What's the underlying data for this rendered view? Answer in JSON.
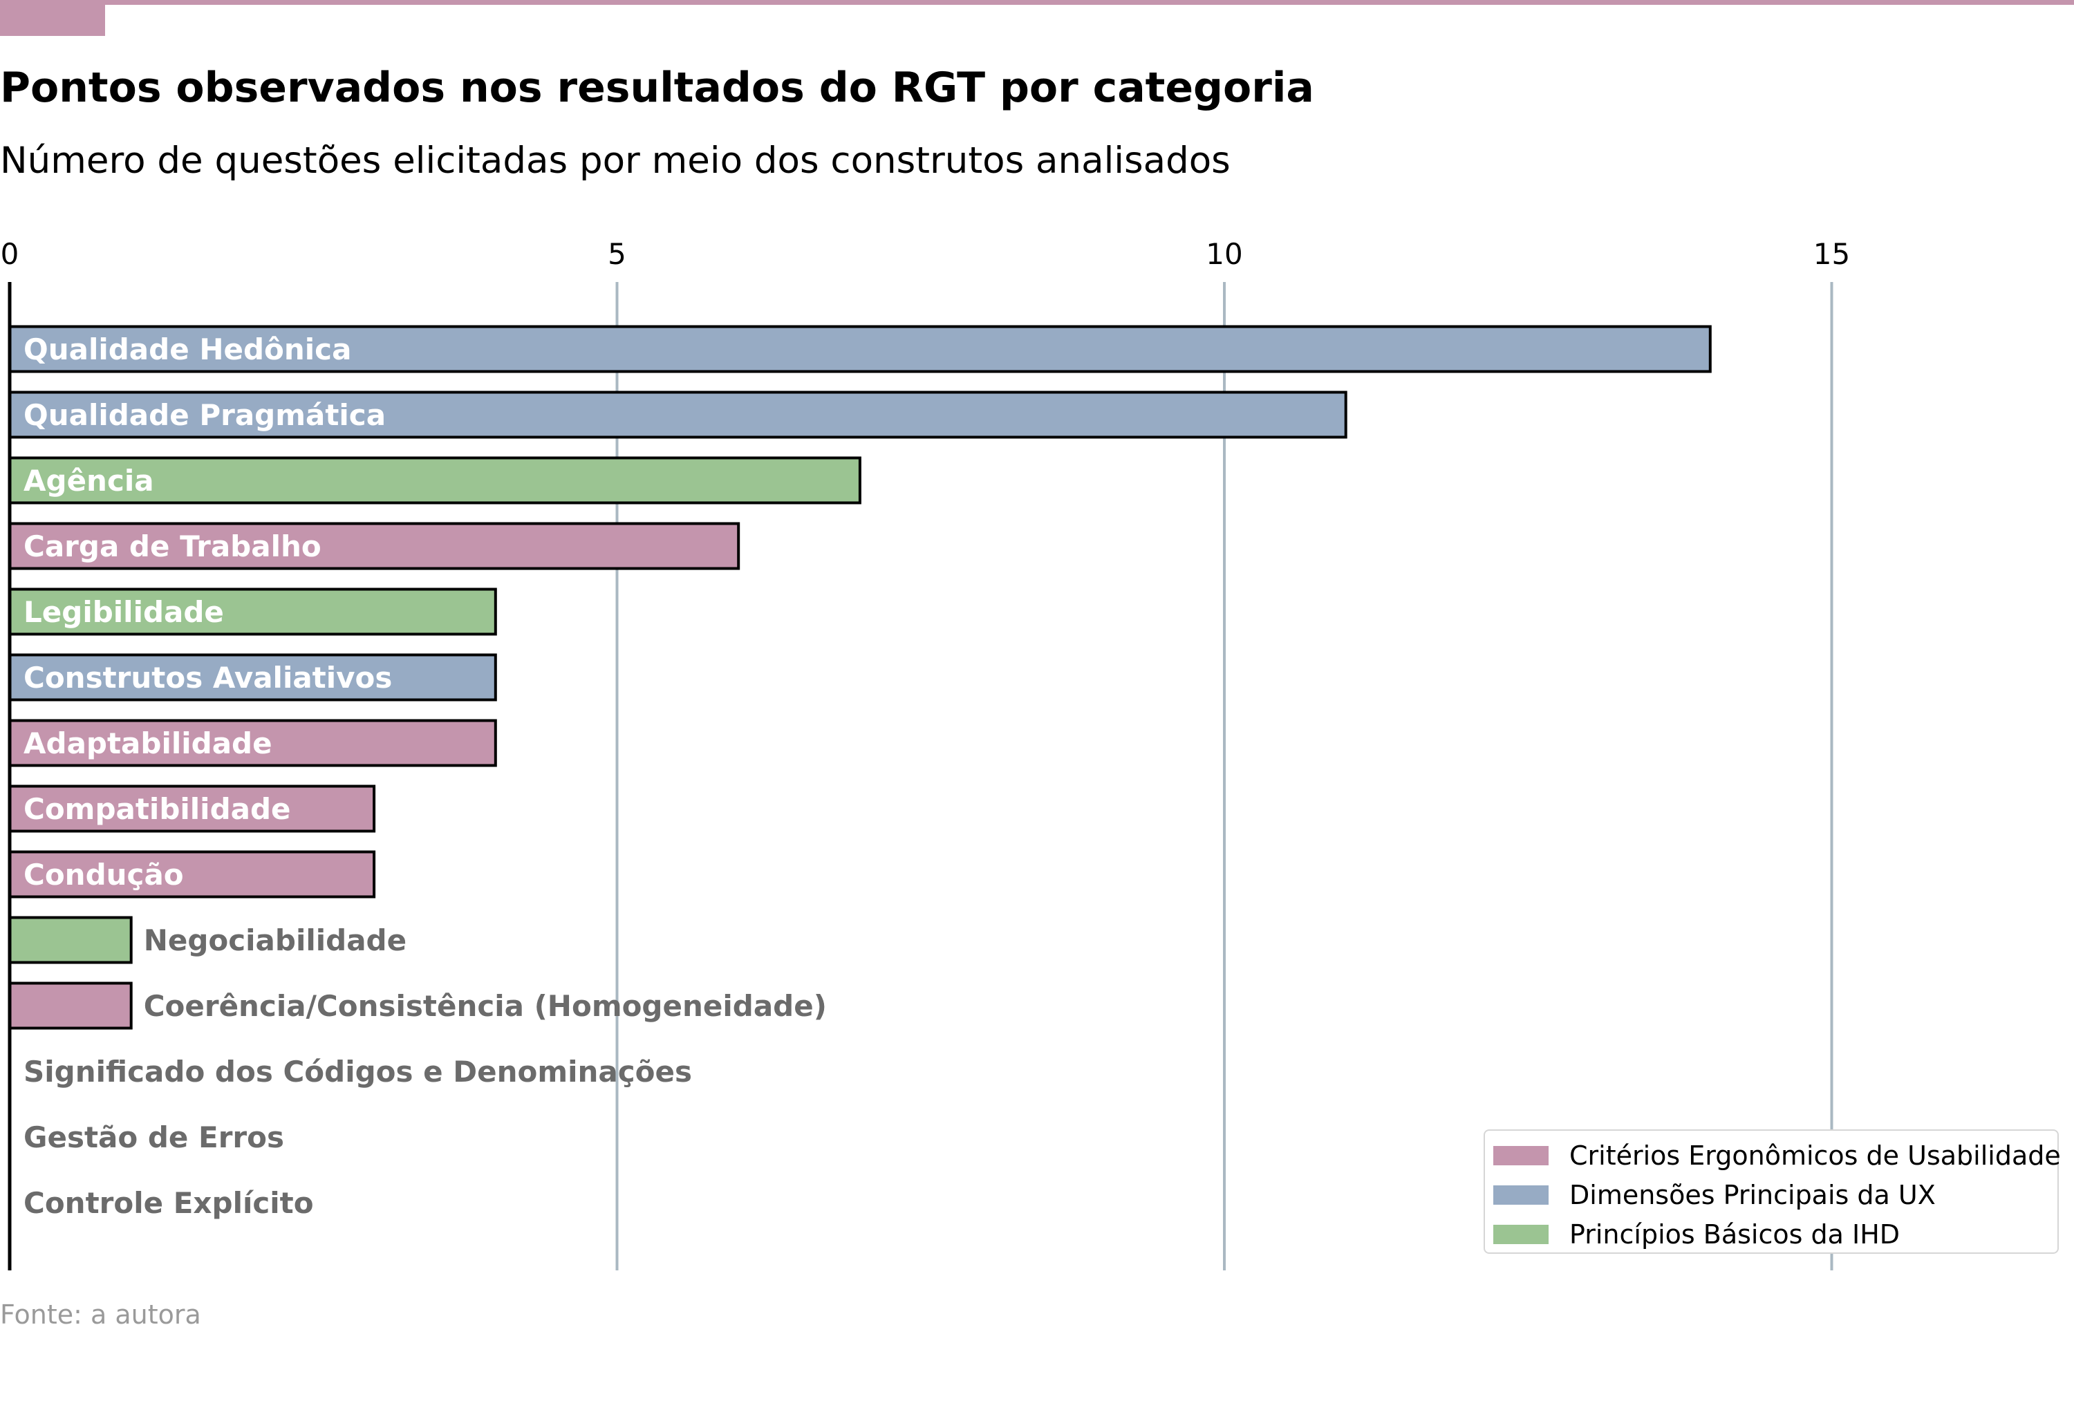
{
  "header": {
    "title": "Pontos observados nos resultados do RGT por categoria",
    "subtitle": "Número de questões elicitadas por meio dos construtos analisados",
    "accent_color": "#c495ad"
  },
  "footer": {
    "source": "Fonte: a autora"
  },
  "chart_data": {
    "type": "bar",
    "orientation": "horizontal",
    "title": "Pontos observados nos resultados do RGT por categoria",
    "subtitle": "Número de questões elicitadas por meio dos construtos analisados",
    "xlabel": "",
    "ylabel": "",
    "xlim": [
      0,
      16.9
    ],
    "x_ticks": [
      0,
      5,
      10,
      15
    ],
    "x_axis_position": "top",
    "grid": "vertical",
    "grid_color": "#aab8c2",
    "categories": [
      "Qualidade Hedônica",
      "Qualidade Pragmática",
      "Agência",
      "Carga de Trabalho",
      "Legibilidade",
      "Construtos Avaliativos",
      "Adaptabilidade",
      "Compatibilidade",
      "Condução",
      "Negociabilidade",
      "Coerência/Consistência (Homogeneidade)",
      "Significado dos Códigos e Denominações",
      "Gestão de Erros",
      "Controle Explícito"
    ],
    "values": [
      14,
      11,
      7,
      6,
      4,
      4,
      4,
      3,
      3,
      1,
      1,
      0,
      0,
      0
    ],
    "groups": [
      "Dimensões Principais da UX",
      "Dimensões Principais da UX",
      "Princípios Básicos da IHD",
      "Critérios Ergonômicos de Usabilidade",
      "Princípios Básicos da IHD",
      "Dimensões Principais da UX",
      "Critérios Ergonômicos de Usabilidade",
      "Critérios Ergonômicos de Usabilidade",
      "Critérios Ergonômicos de Usabilidade",
      "Princípios Básicos da IHD",
      "Critérios Ergonômicos de Usabilidade",
      "Critérios Ergonômicos de Usabilidade",
      "Critérios Ergonômicos de Usabilidade",
      "Critérios Ergonômicos de Usabilidade"
    ],
    "series": [
      {
        "name": "Critérios Ergonômicos de Usabilidade",
        "color": "#c495ad"
      },
      {
        "name": "Dimensões Principais da UX",
        "color": "#97abc4"
      },
      {
        "name": "Princípios Básicos da IHD",
        "color": "#9bc492"
      }
    ],
    "legend": "bottom-right",
    "label_color_inside": "#ffffff",
    "label_color_outside": "#6b6b6b"
  }
}
